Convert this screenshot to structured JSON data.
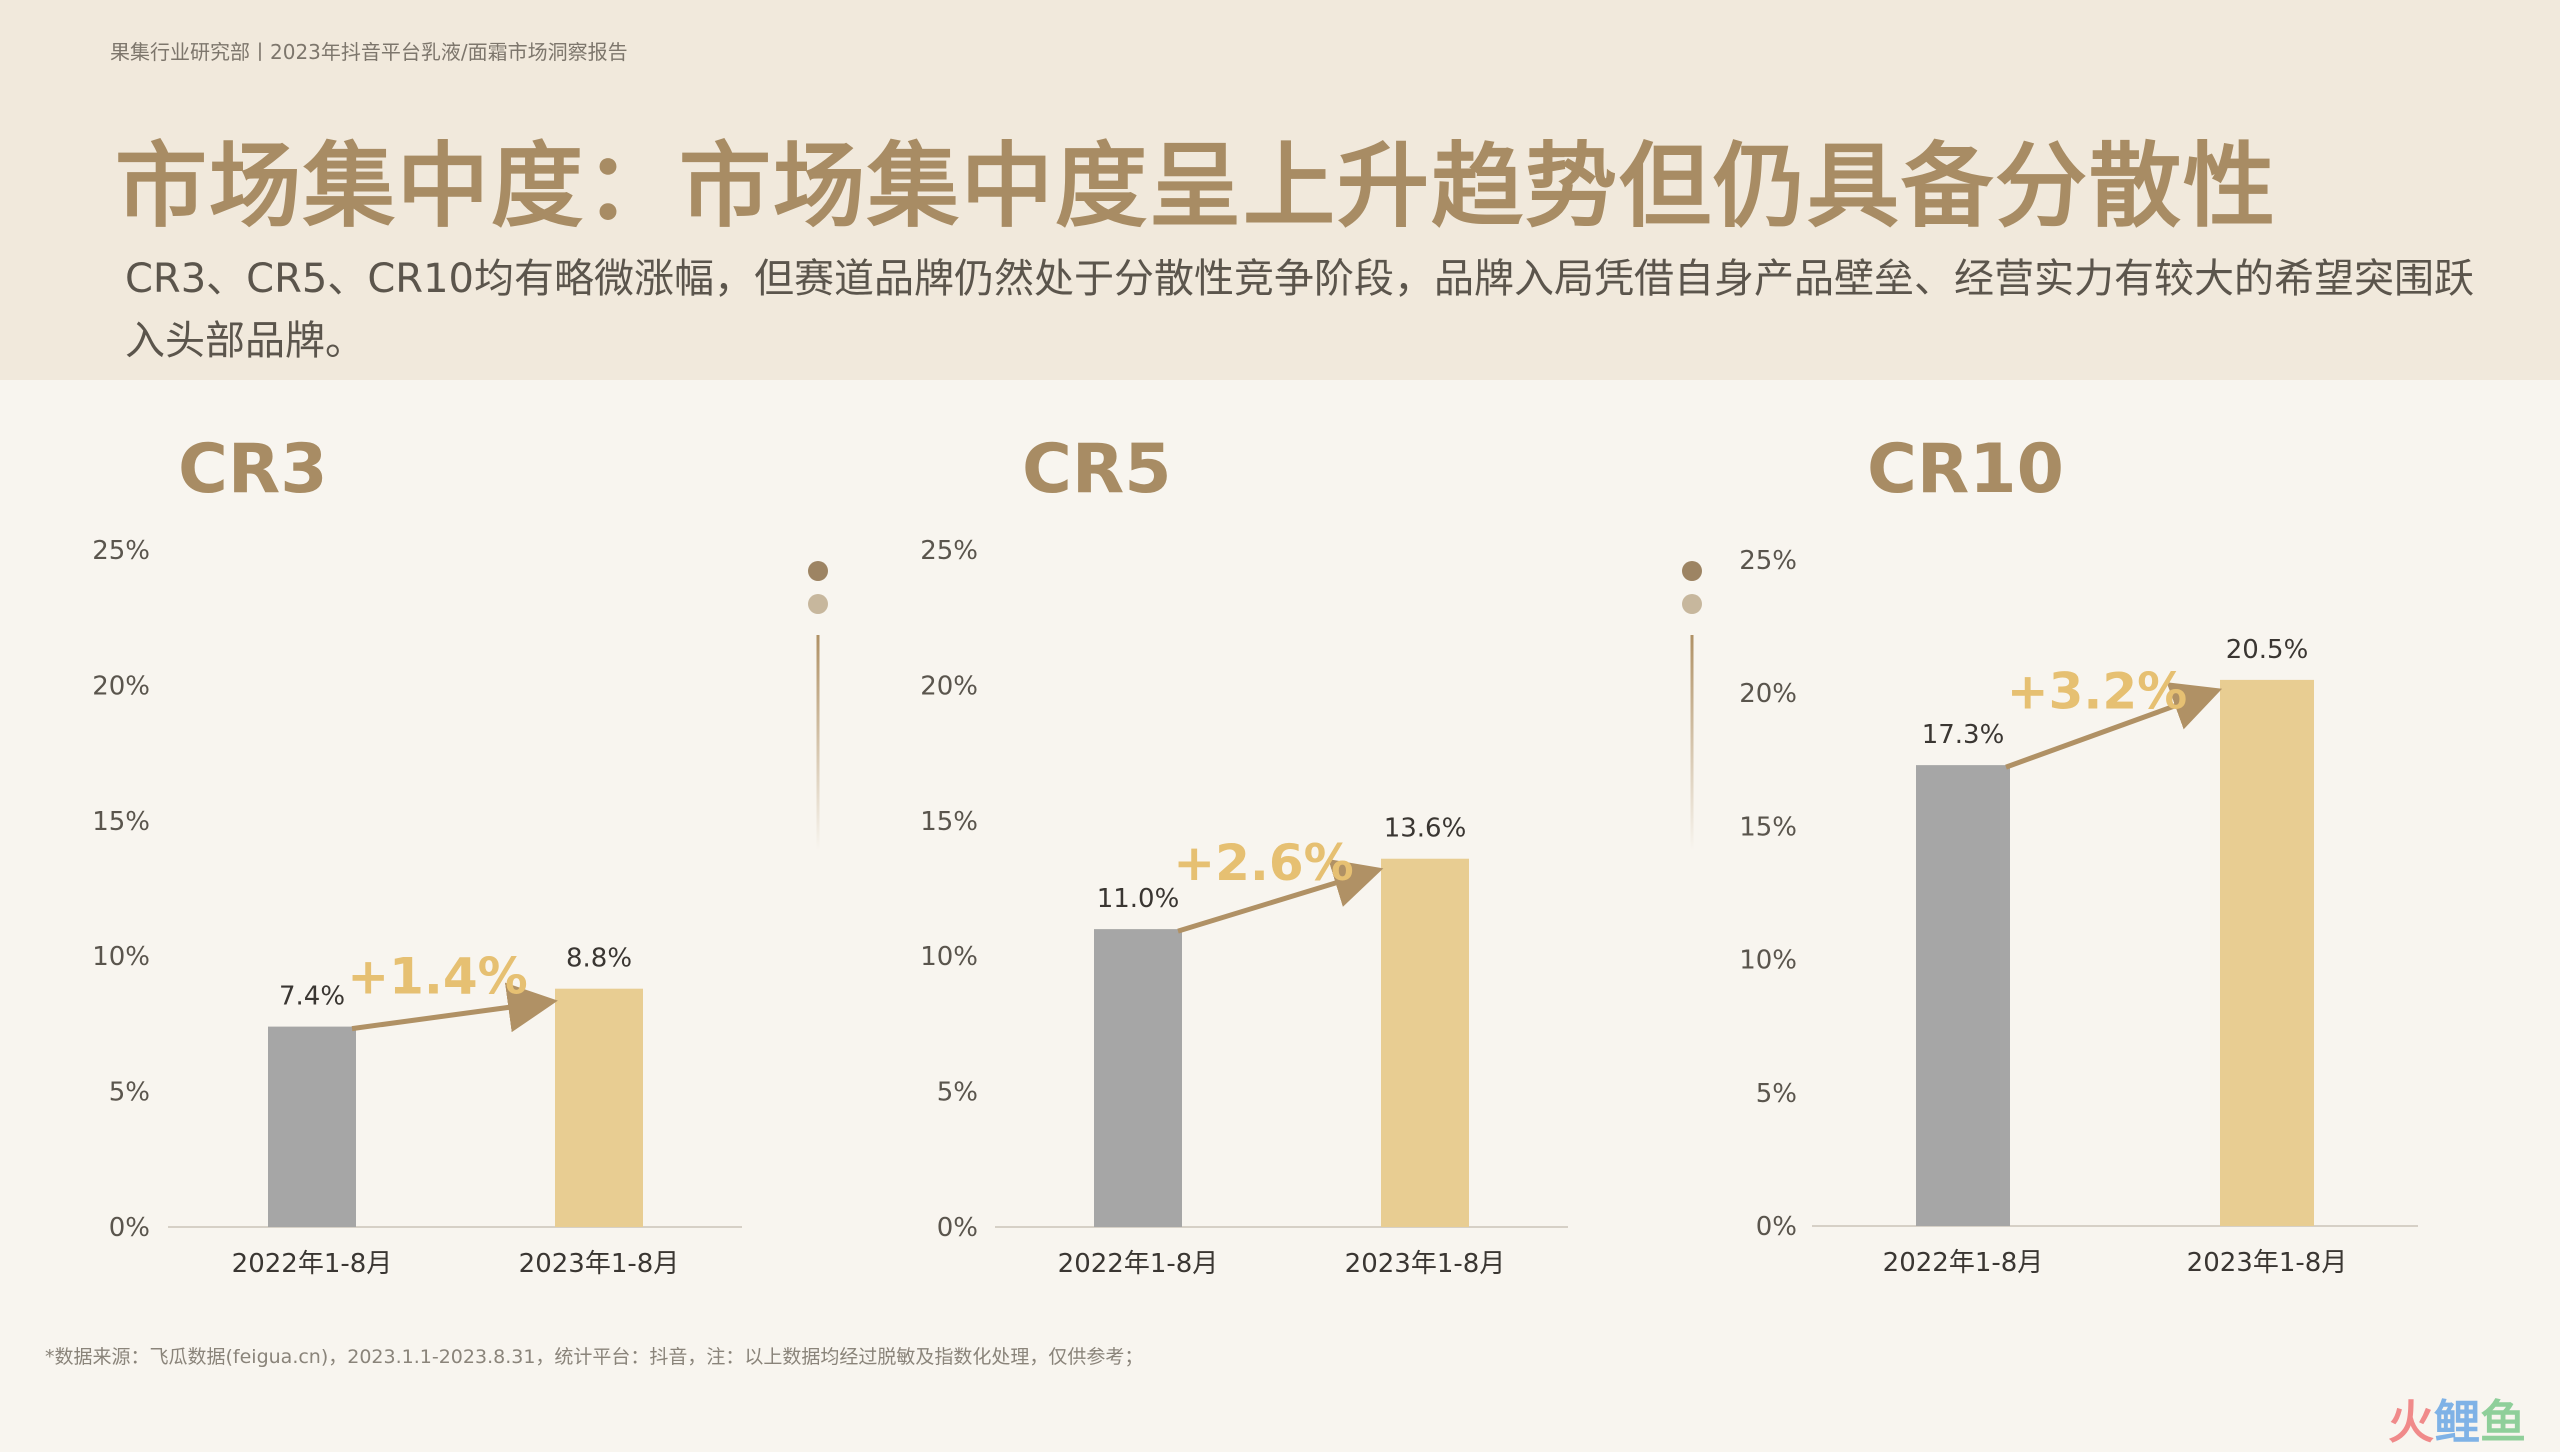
{
  "header": {
    "breadcrumb": "果集行业研究部丨2023年抖音平台乳液/面霜市场洞察报告",
    "title": "市场集中度：市场集中度呈上升趋势但仍具备分散性",
    "subtitle": "CR3、CR5、CR10均有略微涨幅，但赛道品牌仍然处于分散性竞争阶段，品牌入局凭借自身产品壁垒、经营实力有较大的希望突围跃入头部品牌。"
  },
  "colors": {
    "bar_2022": "#a6a6a6",
    "bar_2023": "#e8cd92",
    "accent": "#a88c64",
    "growth_label": "#e6c072",
    "arrow": "#b09165"
  },
  "chart_data": [
    {
      "type": "bar",
      "title": "CR3",
      "categories": [
        "2022年1-8月",
        "2023年1-8月"
      ],
      "values": [
        7.4,
        8.8
      ],
      "value_labels": [
        "7.4%",
        "8.8%"
      ],
      "growth_label": "+1.4%",
      "ylim": [
        0,
        25
      ],
      "yticks": [
        "0%",
        "5%",
        "10%",
        "15%",
        "20%",
        "25%"
      ],
      "grid": false
    },
    {
      "type": "bar",
      "title": "CR5",
      "categories": [
        "2022年1-8月",
        "2023年1-8月"
      ],
      "values": [
        11.0,
        13.6
      ],
      "value_labels": [
        "11.0%",
        "13.6%"
      ],
      "growth_label": "+2.6%",
      "ylim": [
        0,
        25
      ],
      "yticks": [
        "0%",
        "5%",
        "10%",
        "15%",
        "20%",
        "25%"
      ],
      "grid": false
    },
    {
      "type": "bar",
      "title": "CR10",
      "categories": [
        "2022年1-8月",
        "2023年1-8月"
      ],
      "values": [
        17.3,
        20.5
      ],
      "value_labels": [
        "17.3%",
        "20.5%"
      ],
      "growth_label": "+3.2%",
      "ylim": [
        0,
        25
      ],
      "yticks": [
        "0%",
        "5%",
        "10%",
        "15%",
        "20%",
        "25%"
      ],
      "grid": false
    }
  ],
  "footnote": "*数据来源：飞瓜数据(feigua.cn)，2023.1.1-2023.8.31，统计平台：抖音，注：以上数据均经过脱敏及指数化处理，仅供参考；",
  "logo": {
    "part1": "火",
    "part2": "鲤",
    "part3": "鱼"
  }
}
